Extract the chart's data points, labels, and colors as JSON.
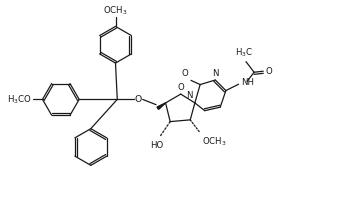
{
  "bg_color": "#ffffff",
  "line_color": "#1a1a1a",
  "line_width": 0.9,
  "font_size": 6.2,
  "figsize": [
    3.56,
    2.22
  ],
  "dpi": 100,
  "xlim": [
    0,
    10.0
  ],
  "ylim": [
    0,
    6.2
  ]
}
